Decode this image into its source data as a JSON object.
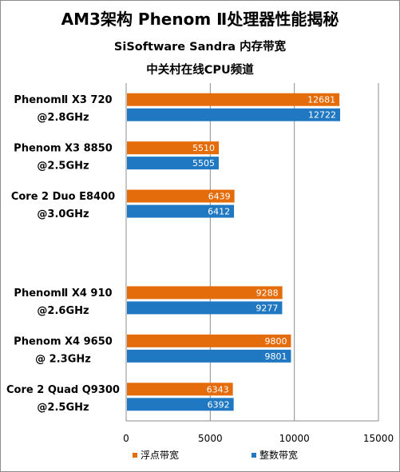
{
  "title": "AM3架构 Phenom Ⅱ处理器性能揭秘",
  "subtitle": "SiSoftware Sandra  内存带宽",
  "source": "中关村在线CPU频道",
  "colors": {
    "float": "#e46c0a",
    "integer": "#1f78c1",
    "grid": "#8c8c8c"
  },
  "chart_data": {
    "type": "bar",
    "orientation": "horizontal",
    "title": "AM3架构 Phenom Ⅱ处理器性能揭秘",
    "subtitle": "SiSoftware Sandra  内存带宽",
    "categories": [
      [
        "PhenomⅡ X3 720",
        "@2.8GHz"
      ],
      [
        "Phenom X3 8850",
        "@2.5GHz"
      ],
      [
        "Core 2 Duo  E8400",
        "@3.0GHz"
      ],
      [
        "",
        ""
      ],
      [
        "PhenomⅡ X4 910",
        "@2.6GHz"
      ],
      [
        "Phenom X4 9650",
        "@ 2.3GHz"
      ],
      [
        "Core 2 Quad Q9300",
        "@2.5GHz"
      ]
    ],
    "series": [
      {
        "name": "浮点带宽",
        "values": [
          12681,
          5510,
          6439,
          null,
          9288,
          9800,
          6343
        ]
      },
      {
        "name": "整数带宽",
        "values": [
          12722,
          5505,
          6412,
          null,
          9277,
          9801,
          6392
        ]
      }
    ],
    "xlim": [
      0,
      15000
    ],
    "xticks": [
      0,
      5000,
      10000,
      15000
    ],
    "grid": true,
    "legend_position": "bottom"
  }
}
